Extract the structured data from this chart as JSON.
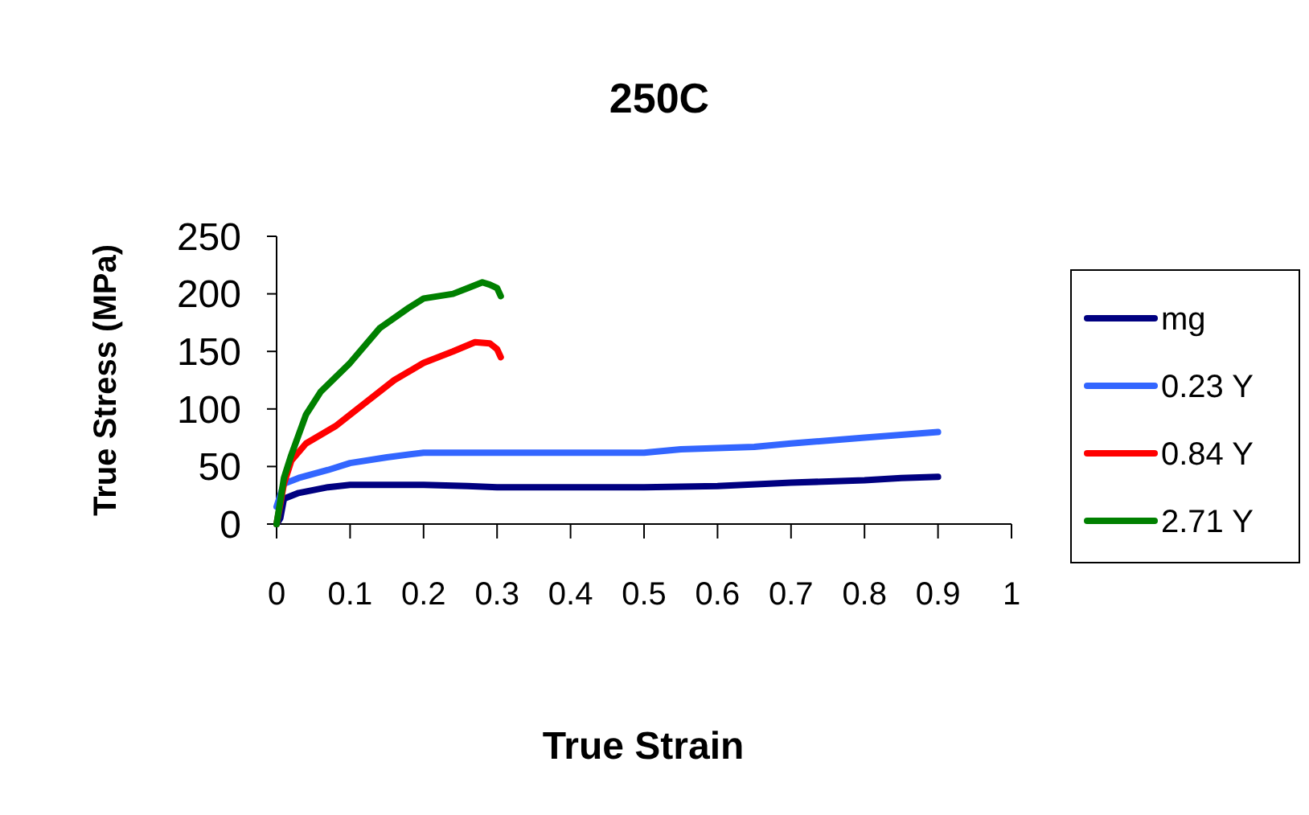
{
  "chart_data": {
    "type": "line",
    "title": "250C",
    "xlabel": "True Strain",
    "ylabel": "True Stress (MPa)",
    "xlim": [
      0,
      1
    ],
    "xticks": [
      0,
      0.1,
      0.2,
      0.3,
      0.4,
      0.5,
      0.6,
      0.7,
      0.8,
      0.9,
      1
    ],
    "ylim": [
      0,
      250
    ],
    "yticks": [
      0,
      50,
      100,
      150,
      200,
      250
    ],
    "grid": false,
    "legend": "right",
    "marker": "none",
    "line_style": "solid",
    "series": [
      {
        "name": "mg",
        "color": "#000080",
        "x": [
          0,
          0.005,
          0.01,
          0.03,
          0.07,
          0.1,
          0.2,
          0.26,
          0.3,
          0.5,
          0.6,
          0.7,
          0.8,
          0.85,
          0.9
        ],
        "values": [
          0,
          5,
          22,
          27,
          32,
          34,
          34,
          33,
          32,
          32,
          33,
          36,
          38,
          40,
          41
        ]
      },
      {
        "name": "0.23 Y",
        "color": "#3366ff",
        "x": [
          0,
          0.01,
          0.03,
          0.07,
          0.1,
          0.15,
          0.2,
          0.3,
          0.5,
          0.55,
          0.65,
          0.7,
          0.8,
          0.9
        ],
        "values": [
          15,
          35,
          40,
          47,
          53,
          58,
          62,
          62,
          62,
          65,
          67,
          70,
          75,
          80
        ]
      },
      {
        "name": "0.84 Y",
        "color": "#ff0000",
        "x": [
          0,
          0.01,
          0.02,
          0.04,
          0.08,
          0.12,
          0.16,
          0.2,
          0.24,
          0.27,
          0.29,
          0.3,
          0.305
        ],
        "values": [
          0,
          35,
          55,
          70,
          85,
          105,
          125,
          140,
          150,
          158,
          157,
          152,
          145
        ]
      },
      {
        "name": "2.71 Y",
        "color": "#008000",
        "x": [
          0,
          0.01,
          0.02,
          0.04,
          0.06,
          0.1,
          0.14,
          0.18,
          0.2,
          0.24,
          0.26,
          0.28,
          0.29,
          0.3,
          0.305
        ],
        "values": [
          0,
          40,
          60,
          95,
          115,
          140,
          170,
          188,
          196,
          200,
          205,
          210,
          208,
          205,
          198
        ]
      }
    ]
  }
}
